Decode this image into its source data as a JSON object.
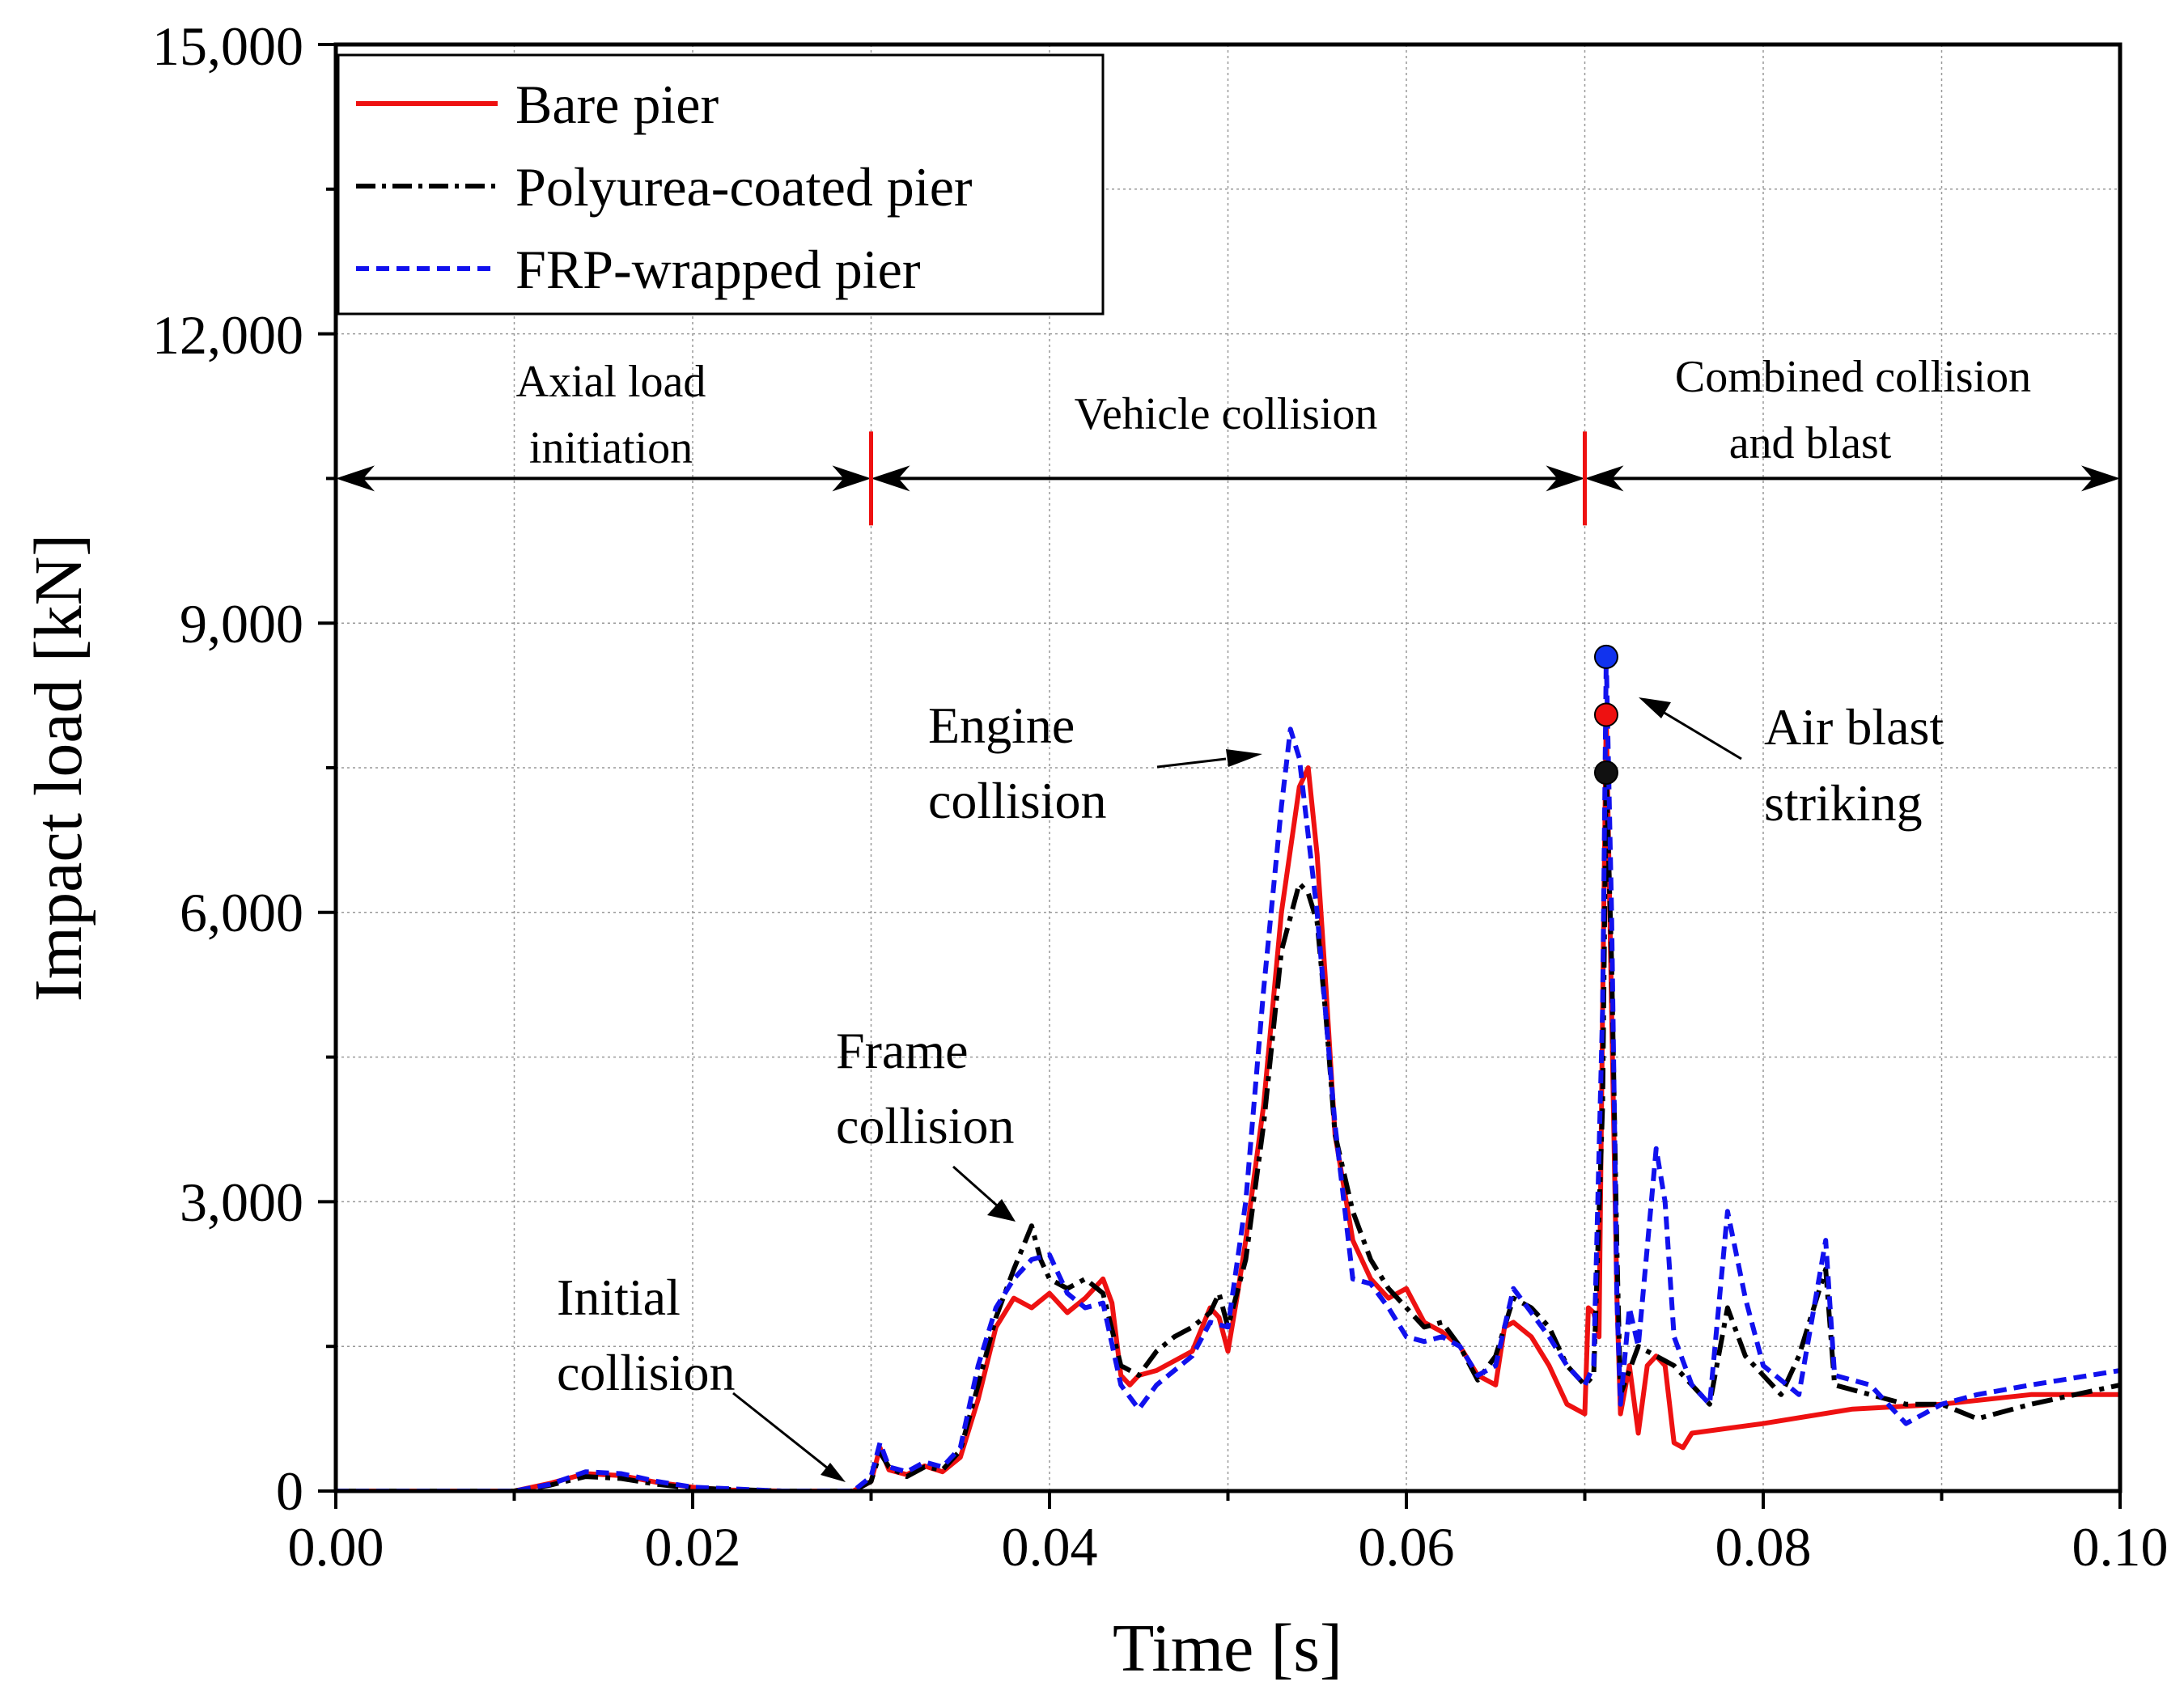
{
  "chart_data": {
    "type": "line",
    "xlabel": "Time [s]",
    "ylabel": "Impact load [kN]",
    "xlim": [
      0,
      0.1
    ],
    "ylim": [
      0,
      15000
    ],
    "xticks": [
      0,
      0.02,
      0.04,
      0.06,
      0.08,
      0.1
    ],
    "xtick_labels": [
      "0.00",
      "0.02",
      "0.04",
      "0.06",
      "0.08",
      "0.10"
    ],
    "yticks": [
      0,
      3000,
      6000,
      9000,
      12000,
      15000
    ],
    "ytick_labels": [
      "0",
      "3,000",
      "6,000",
      "9,000",
      "12,000",
      "15,000"
    ],
    "grid": true,
    "legend_position": "top-left",
    "series": [
      {
        "name": "Bare pier",
        "color": "#ee1111",
        "dash": "solid",
        "points": [
          [
            0,
            0
          ],
          [
            0.01,
            0
          ],
          [
            0.012,
            80
          ],
          [
            0.014,
            180
          ],
          [
            0.016,
            160
          ],
          [
            0.018,
            90
          ],
          [
            0.02,
            40
          ],
          [
            0.022,
            10
          ],
          [
            0.025,
            0
          ],
          [
            0.029,
            0
          ],
          [
            0.03,
            100
          ],
          [
            0.0305,
            450
          ],
          [
            0.031,
            220
          ],
          [
            0.032,
            170
          ],
          [
            0.033,
            260
          ],
          [
            0.034,
            200
          ],
          [
            0.035,
            350
          ],
          [
            0.036,
            950
          ],
          [
            0.037,
            1700
          ],
          [
            0.038,
            2000
          ],
          [
            0.039,
            1900
          ],
          [
            0.04,
            2050
          ],
          [
            0.041,
            1850
          ],
          [
            0.042,
            2000
          ],
          [
            0.043,
            2200
          ],
          [
            0.0435,
            1950
          ],
          [
            0.044,
            1200
          ],
          [
            0.0445,
            1100
          ],
          [
            0.045,
            1200
          ],
          [
            0.046,
            1250
          ],
          [
            0.047,
            1350
          ],
          [
            0.048,
            1450
          ],
          [
            0.049,
            1900
          ],
          [
            0.0495,
            1800
          ],
          [
            0.05,
            1450
          ],
          [
            0.0505,
            2000
          ],
          [
            0.051,
            2600
          ],
          [
            0.052,
            4000
          ],
          [
            0.053,
            6000
          ],
          [
            0.054,
            7300
          ],
          [
            0.0545,
            7500
          ],
          [
            0.055,
            6600
          ],
          [
            0.0555,
            5200
          ],
          [
            0.056,
            3700
          ],
          [
            0.057,
            2600
          ],
          [
            0.058,
            2200
          ],
          [
            0.059,
            2000
          ],
          [
            0.06,
            2100
          ],
          [
            0.061,
            1750
          ],
          [
            0.062,
            1650
          ],
          [
            0.063,
            1500
          ],
          [
            0.064,
            1200
          ],
          [
            0.065,
            1100
          ],
          [
            0.0655,
            1700
          ],
          [
            0.066,
            1750
          ],
          [
            0.067,
            1600
          ],
          [
            0.068,
            1300
          ],
          [
            0.069,
            900
          ],
          [
            0.07,
            800
          ],
          [
            0.0702,
            1900
          ],
          [
            0.0705,
            1850
          ],
          [
            0.0708,
            1600
          ],
          [
            0.071,
            5000
          ],
          [
            0.0712,
            8050
          ],
          [
            0.0715,
            5000
          ],
          [
            0.0718,
            2000
          ],
          [
            0.072,
            800
          ],
          [
            0.0725,
            1300
          ],
          [
            0.073,
            600
          ],
          [
            0.0735,
            1300
          ],
          [
            0.074,
            1400
          ],
          [
            0.0745,
            1300
          ],
          [
            0.075,
            500
          ],
          [
            0.0755,
            450
          ],
          [
            0.076,
            600
          ],
          [
            0.078,
            650
          ],
          [
            0.08,
            700
          ],
          [
            0.085,
            850
          ],
          [
            0.09,
            900
          ],
          [
            0.095,
            1000
          ],
          [
            0.1,
            1000
          ]
        ]
      },
      {
        "name": "Polyurea-coated pier",
        "color": "#000000",
        "dash": "dash-dot",
        "points": [
          [
            0,
            0
          ],
          [
            0.01,
            0
          ],
          [
            0.012,
            60
          ],
          [
            0.014,
            150
          ],
          [
            0.016,
            130
          ],
          [
            0.018,
            70
          ],
          [
            0.02,
            30
          ],
          [
            0.025,
            0
          ],
          [
            0.029,
            0
          ],
          [
            0.03,
            100
          ],
          [
            0.0305,
            400
          ],
          [
            0.031,
            250
          ],
          [
            0.032,
            150
          ],
          [
            0.033,
            250
          ],
          [
            0.034,
            220
          ],
          [
            0.035,
            420
          ],
          [
            0.036,
            1100
          ],
          [
            0.037,
            1800
          ],
          [
            0.038,
            2300
          ],
          [
            0.039,
            2750
          ],
          [
            0.0395,
            2400
          ],
          [
            0.04,
            2200
          ],
          [
            0.041,
            2100
          ],
          [
            0.042,
            2200
          ],
          [
            0.043,
            2050
          ],
          [
            0.044,
            1300
          ],
          [
            0.045,
            1200
          ],
          [
            0.046,
            1450
          ],
          [
            0.047,
            1600
          ],
          [
            0.048,
            1700
          ],
          [
            0.049,
            1850
          ],
          [
            0.0495,
            2050
          ],
          [
            0.05,
            1700
          ],
          [
            0.051,
            2400
          ],
          [
            0.052,
            3800
          ],
          [
            0.053,
            5600
          ],
          [
            0.054,
            6300
          ],
          [
            0.0545,
            6200
          ],
          [
            0.055,
            5900
          ],
          [
            0.0555,
            4900
          ],
          [
            0.056,
            3700
          ],
          [
            0.057,
            2900
          ],
          [
            0.058,
            2400
          ],
          [
            0.059,
            2100
          ],
          [
            0.06,
            1900
          ],
          [
            0.061,
            1700
          ],
          [
            0.062,
            1750
          ],
          [
            0.063,
            1500
          ],
          [
            0.064,
            1150
          ],
          [
            0.065,
            1400
          ],
          [
            0.066,
            2000
          ],
          [
            0.067,
            1900
          ],
          [
            0.068,
            1700
          ],
          [
            0.069,
            1300
          ],
          [
            0.07,
            1100
          ],
          [
            0.0705,
            1200
          ],
          [
            0.071,
            4000
          ],
          [
            0.0712,
            7450
          ],
          [
            0.0715,
            5500
          ],
          [
            0.0718,
            2500
          ],
          [
            0.072,
            1000
          ],
          [
            0.073,
            1500
          ],
          [
            0.074,
            1400
          ],
          [
            0.075,
            1300
          ],
          [
            0.076,
            1100
          ],
          [
            0.077,
            900
          ],
          [
            0.078,
            1900
          ],
          [
            0.079,
            1400
          ],
          [
            0.08,
            1200
          ],
          [
            0.081,
            1000
          ],
          [
            0.082,
            1400
          ],
          [
            0.0835,
            2300
          ],
          [
            0.084,
            1100
          ],
          [
            0.086,
            1000
          ],
          [
            0.088,
            900
          ],
          [
            0.09,
            900
          ],
          [
            0.092,
            750
          ],
          [
            0.095,
            900
          ],
          [
            0.1,
            1100
          ]
        ]
      },
      {
        "name": "FRP-wrapped pier",
        "color": "#1111ee",
        "dash": "dashed",
        "points": [
          [
            0,
            0
          ],
          [
            0.01,
            0
          ],
          [
            0.012,
            70
          ],
          [
            0.014,
            200
          ],
          [
            0.016,
            180
          ],
          [
            0.018,
            100
          ],
          [
            0.02,
            40
          ],
          [
            0.025,
            0
          ],
          [
            0.029,
            0
          ],
          [
            0.03,
            150
          ],
          [
            0.0305,
            500
          ],
          [
            0.031,
            250
          ],
          [
            0.032,
            200
          ],
          [
            0.033,
            300
          ],
          [
            0.034,
            250
          ],
          [
            0.035,
            450
          ],
          [
            0.036,
            1300
          ],
          [
            0.037,
            1900
          ],
          [
            0.038,
            2200
          ],
          [
            0.039,
            2400
          ],
          [
            0.04,
            2450
          ],
          [
            0.041,
            2050
          ],
          [
            0.042,
            1900
          ],
          [
            0.043,
            1950
          ],
          [
            0.044,
            1100
          ],
          [
            0.045,
            850
          ],
          [
            0.046,
            1100
          ],
          [
            0.047,
            1250
          ],
          [
            0.048,
            1400
          ],
          [
            0.049,
            1750
          ],
          [
            0.05,
            1700
          ],
          [
            0.051,
            3000
          ],
          [
            0.052,
            5200
          ],
          [
            0.053,
            7100
          ],
          [
            0.0535,
            7900
          ],
          [
            0.054,
            7600
          ],
          [
            0.055,
            6000
          ],
          [
            0.056,
            3800
          ],
          [
            0.057,
            2200
          ],
          [
            0.058,
            2150
          ],
          [
            0.059,
            1900
          ],
          [
            0.06,
            1600
          ],
          [
            0.061,
            1550
          ],
          [
            0.062,
            1600
          ],
          [
            0.063,
            1500
          ],
          [
            0.064,
            1200
          ],
          [
            0.065,
            1300
          ],
          [
            0.066,
            2100
          ],
          [
            0.067,
            1850
          ],
          [
            0.068,
            1600
          ],
          [
            0.069,
            1300
          ],
          [
            0.07,
            1100
          ],
          [
            0.0705,
            1300
          ],
          [
            0.071,
            5000
          ],
          [
            0.0712,
            8650
          ],
          [
            0.0715,
            6000
          ],
          [
            0.0718,
            2000
          ],
          [
            0.072,
            900
          ],
          [
            0.0725,
            1900
          ],
          [
            0.073,
            1500
          ],
          [
            0.074,
            3550
          ],
          [
            0.0745,
            3000
          ],
          [
            0.075,
            1600
          ],
          [
            0.076,
            1100
          ],
          [
            0.077,
            900
          ],
          [
            0.078,
            2900
          ],
          [
            0.079,
            2000
          ],
          [
            0.08,
            1300
          ],
          [
            0.082,
            1000
          ],
          [
            0.0835,
            2600
          ],
          [
            0.084,
            1200
          ],
          [
            0.086,
            1100
          ],
          [
            0.088,
            700
          ],
          [
            0.09,
            900
          ],
          [
            0.092,
            1000
          ],
          [
            0.095,
            1100
          ],
          [
            0.1,
            1250
          ]
        ]
      }
    ],
    "peak_markers": [
      {
        "series": "FRP-wrapped pier",
        "x": 0.0712,
        "y": 8650,
        "color": "#1133ee"
      },
      {
        "series": "Bare pier",
        "x": 0.0712,
        "y": 8050,
        "color": "#ee1111"
      },
      {
        "series": "Polyurea-coated pier",
        "x": 0.0712,
        "y": 7450,
        "color": "#111111"
      }
    ],
    "phases": {
      "divider_color": "#ee1111",
      "boundaries": [
        0.03,
        0.07
      ],
      "arrow_y": 10500,
      "labels": {
        "axial_1": "Axial load",
        "axial_2": "initiation",
        "vehicle": "Vehicle collision",
        "combined_1": "Combined collision",
        "combined_2": "and blast"
      }
    },
    "annotations": {
      "initial_1": "Initial",
      "initial_2": "collision",
      "frame_1": "Frame",
      "frame_2": "collision",
      "engine_1": "Engine",
      "engine_2": "collision",
      "blast_1": "Air blast",
      "blast_2": "striking"
    }
  }
}
